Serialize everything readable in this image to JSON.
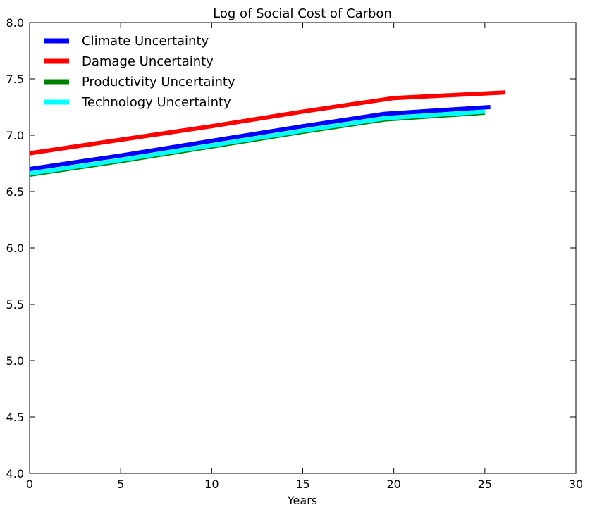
{
  "chart_data": {
    "type": "line",
    "title": "Log of Social Cost of Carbon",
    "xlabel": "Years",
    "ylabel": "",
    "xlim": [
      0,
      30
    ],
    "ylim": [
      4.0,
      8.0
    ],
    "xticks": [
      0,
      5,
      10,
      15,
      20,
      25,
      30
    ],
    "yticks": [
      4.0,
      4.5,
      5.0,
      5.5,
      6.0,
      6.5,
      7.0,
      7.5,
      8.0
    ],
    "xtick_labels": [
      "0",
      "5",
      "10",
      "15",
      "20",
      "25",
      "30"
    ],
    "ytick_labels": [
      "4.0",
      "4.5",
      "5.0",
      "5.5",
      "6.0",
      "6.5",
      "7.0",
      "7.5",
      "8.0"
    ],
    "grid": false,
    "legend_position": "top-left",
    "series": [
      {
        "name": "Climate Uncertainty",
        "color": "#0000ff",
        "x": [
          0,
          5,
          10,
          15,
          19.5,
          25.3
        ],
        "y": [
          6.7,
          6.82,
          6.95,
          7.08,
          7.19,
          7.25
        ]
      },
      {
        "name": "Damage Uncertainty",
        "color": "#ff0000",
        "x": [
          0,
          5,
          10,
          15,
          20,
          26.1
        ],
        "y": [
          6.84,
          6.96,
          7.08,
          7.21,
          7.33,
          7.38
        ]
      },
      {
        "name": "Productivity Uncertainty",
        "color": "#008000",
        "x": [
          0,
          5,
          10,
          15,
          19.5,
          25.0
        ],
        "y": [
          6.65,
          6.77,
          6.9,
          7.03,
          7.14,
          7.2
        ]
      },
      {
        "name": "Technology Uncertainty",
        "color": "#00ffff",
        "x": [
          0,
          5,
          10,
          15,
          19.5,
          25.0
        ],
        "y": [
          6.66,
          6.78,
          6.91,
          7.04,
          7.15,
          7.21
        ]
      }
    ]
  }
}
